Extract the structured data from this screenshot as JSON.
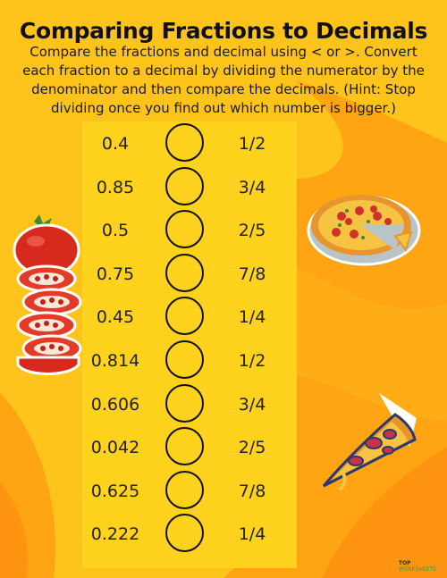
{
  "title": "Comparing Fractions to Decimals",
  "instructions": "Compare the fractions and decimal using < or >. Convert each fraction to a decimal by dividing the numerator by the denominator and then compare the decimals. (Hint: Stop dividing once you find out which number is bigger.)",
  "rows": [
    {
      "decimal": "0.4",
      "fraction": "1/2"
    },
    {
      "decimal": "0.85",
      "fraction": "3/4"
    },
    {
      "decimal": "0.5",
      "fraction": "2/5"
    },
    {
      "decimal": "0.75",
      "fraction": "7/8"
    },
    {
      "decimal": "0.45",
      "fraction": "1/4"
    },
    {
      "decimal": "0.814",
      "fraction": "1/2"
    },
    {
      "decimal": "0.606",
      "fraction": "3/4"
    },
    {
      "decimal": "0.042",
      "fraction": "2/5"
    },
    {
      "decimal": "0.625",
      "fraction": "7/8"
    },
    {
      "decimal": "0.222",
      "fraction": "1/4"
    }
  ],
  "brand": {
    "line1": "TOP",
    "line2": "WORKSHEETS"
  },
  "icons": [
    "tomato-icon",
    "pizza-pie-icon",
    "pizza-slice-icon"
  ],
  "colors": {
    "background": "#FFC41C",
    "wave": "#FFA514",
    "panel": "#FFD21E",
    "text": "#111111"
  }
}
